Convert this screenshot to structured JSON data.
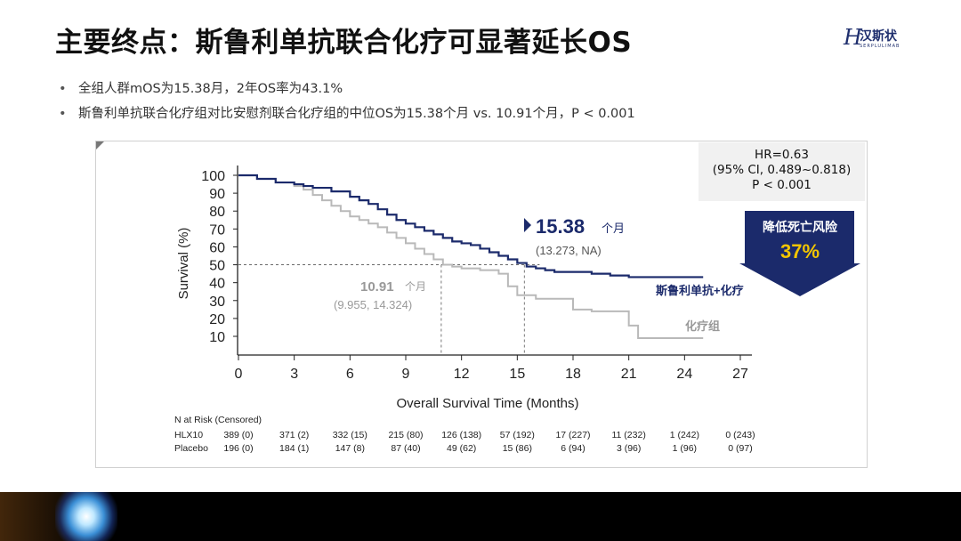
{
  "title": "主要终点：斯鲁利单抗联合化疗可显著延长OS",
  "logo": {
    "mark": "H",
    "name": "汉斯状",
    "sub": "SERPLULIMAB"
  },
  "bullets": [
    "全组人群mOS为15.38月，2年OS率为43.1%",
    "斯鲁利单抗联合化疗组对比安慰剂联合化疗组的中位OS为15.38个月 vs. 10.91个月，P < 0.001"
  ],
  "hr_box": {
    "line1": "HR=0.63",
    "line2": "(95% CI, 0.489~0.818)",
    "line3": "P  < 0.001"
  },
  "arrow": {
    "label": "降低死亡风险",
    "value": "37%"
  },
  "colors": {
    "hlx10": "#1b2a6b",
    "placebo": "#b9b9b9",
    "arrow": "#1b2a6b",
    "arrow_value": "#f2c500"
  },
  "chart_data": {
    "type": "line",
    "xlabel": "Overall Survival Time (Months)",
    "ylabel": "Survival (%)",
    "xlim": [
      0,
      27
    ],
    "ylim": [
      0,
      100
    ],
    "x_ticks": [
      0,
      3,
      6,
      9,
      12,
      15,
      18,
      21,
      24,
      27
    ],
    "y_ticks": [
      10,
      20,
      30,
      40,
      50,
      60,
      70,
      80,
      90,
      100
    ],
    "series": [
      {
        "name": "斯鲁利单抗+化疗",
        "color": "#1b2a6b",
        "x": [
          0,
          1,
          2,
          3,
          3.5,
          4,
          5,
          6,
          6.5,
          7,
          7.5,
          8,
          8.5,
          9,
          9.5,
          10,
          10.5,
          11,
          11.5,
          12,
          12.5,
          13,
          13.5,
          14,
          14.5,
          15,
          15.5,
          16,
          16.5,
          17,
          18,
          19,
          20,
          21,
          22,
          23,
          24,
          25
        ],
        "y": [
          100,
          98,
          96,
          95,
          94,
          93,
          91,
          88,
          86,
          84,
          81,
          78,
          75,
          73,
          71,
          69,
          67,
          65,
          63,
          62,
          61,
          59,
          57,
          55,
          53,
          51,
          49,
          48,
          47,
          46,
          46,
          45,
          44,
          43.1,
          43.1,
          43.1,
          43.1,
          43.1
        ]
      },
      {
        "name": "化疗组",
        "color": "#b9b9b9",
        "x": [
          0,
          1,
          2,
          3,
          3.5,
          4,
          4.5,
          5,
          5.5,
          6,
          6.5,
          7,
          7.5,
          8,
          8.5,
          9,
          9.5,
          10,
          10.5,
          11,
          11.5,
          12,
          13,
          14,
          14.5,
          15,
          16,
          17,
          18,
          19,
          20,
          21,
          21.5,
          22,
          23,
          24,
          25
        ],
        "y": [
          100,
          98,
          96,
          94,
          92,
          89,
          86,
          83,
          80,
          77,
          75,
          73,
          71,
          68,
          65,
          62,
          59,
          56,
          53,
          50,
          49,
          48,
          47,
          45,
          38,
          33,
          31,
          31,
          25,
          24,
          24,
          16,
          9,
          9,
          9,
          9,
          9
        ]
      }
    ],
    "annotations": {
      "hlx_median": "15.38",
      "hlx_median_unit": "个月",
      "hlx_ci": "(13.273, NA)",
      "pbo_median": "10.91",
      "pbo_median_unit": "个月",
      "pbo_ci": "(9.955, 14.324)",
      "hlx_median_x": 15.38,
      "pbo_median_x": 10.91,
      "median_y": 50
    },
    "risk_table": {
      "title": "N at Risk (Censored)",
      "rows": [
        {
          "label": "HLX10",
          "values": [
            "389 (0)",
            "371 (2)",
            "332 (15)",
            "215 (80)",
            "126 (138)",
            "57 (192)",
            "17 (227)",
            "11 (232)",
            "1 (242)",
            "0 (243)"
          ]
        },
        {
          "label": "Placebo",
          "values": [
            "196 (0)",
            "184 (1)",
            "147 (8)",
            "87 (40)",
            "49 (62)",
            "15 (86)",
            "6 (94)",
            "3 (96)",
            "1 (96)",
            "0 (97)"
          ]
        }
      ]
    }
  }
}
